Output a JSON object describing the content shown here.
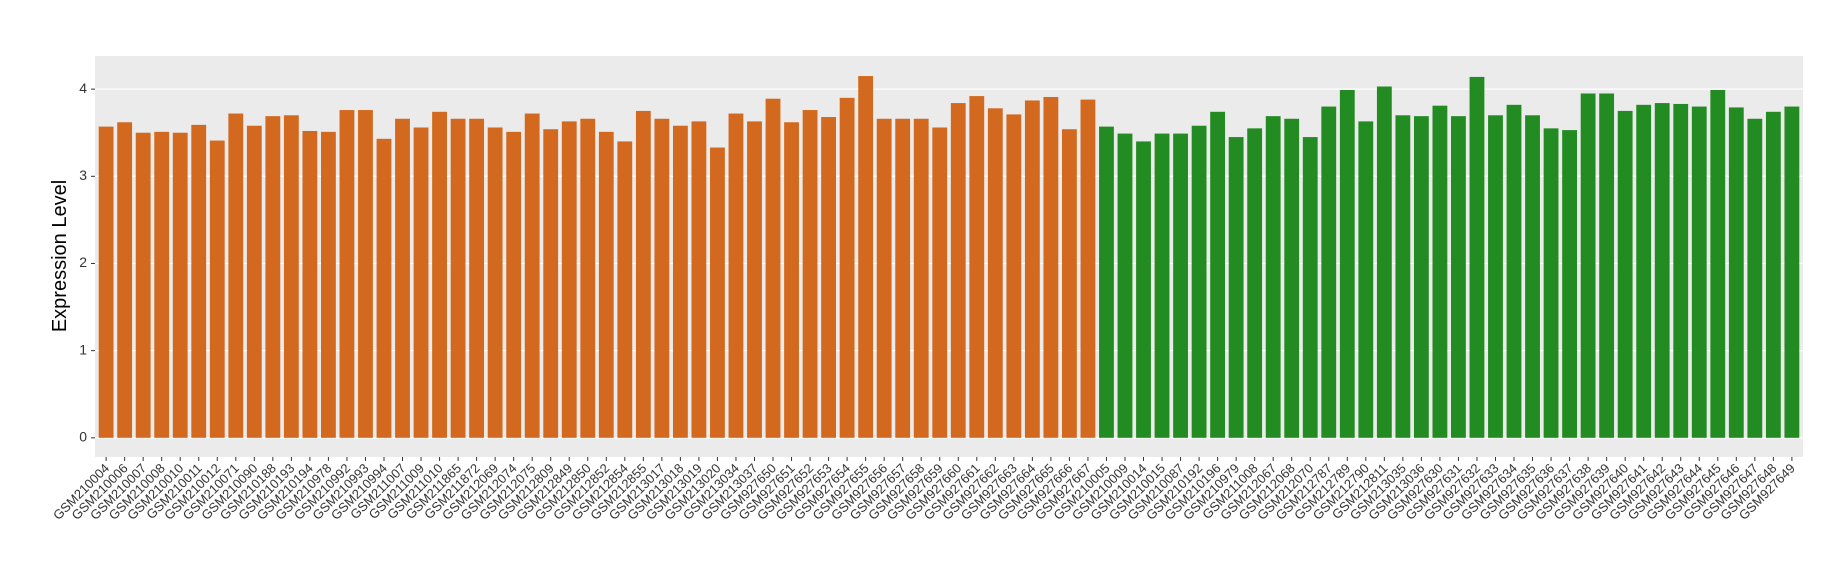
{
  "chart_data": {
    "type": "bar",
    "y_label": "Expression Level",
    "categories": [
      "GSM210004",
      "GSM210006",
      "GSM210007",
      "GSM210008",
      "GSM210010",
      "GSM210011",
      "GSM210012",
      "GSM210071",
      "GSM210090",
      "GSM210188",
      "GSM210193",
      "GSM210194",
      "GSM210978",
      "GSM210992",
      "GSM210993",
      "GSM210994",
      "GSM211007",
      "GSM211009",
      "GSM211010",
      "GSM211865",
      "GSM211872",
      "GSM212069",
      "GSM212074",
      "GSM212075",
      "GSM212809",
      "GSM212849",
      "GSM212850",
      "GSM212852",
      "GSM212854",
      "GSM212855",
      "GSM213017",
      "GSM213018",
      "GSM213019",
      "GSM213020",
      "GSM213034",
      "GSM213037",
      "GSM927650",
      "GSM927651",
      "GSM927652",
      "GSM927653",
      "GSM927654",
      "GSM927655",
      "GSM927656",
      "GSM927657",
      "GSM927658",
      "GSM927659",
      "GSM927660",
      "GSM927661",
      "GSM927662",
      "GSM927663",
      "GSM927664",
      "GSM927665",
      "GSM927666",
      "GSM927667",
      "GSM210005",
      "GSM210009",
      "GSM210014",
      "GSM210015",
      "GSM210087",
      "GSM210192",
      "GSM210196",
      "GSM210979",
      "GSM211008",
      "GSM212067",
      "GSM212068",
      "GSM212070",
      "GSM212787",
      "GSM212789",
      "GSM212790",
      "GSM212811",
      "GSM213035",
      "GSM213036",
      "GSM927630",
      "GSM927631",
      "GSM927632",
      "GSM927633",
      "GSM927634",
      "GSM927635",
      "GSM927636",
      "GSM927637",
      "GSM927638",
      "GSM927639",
      "GSM927640",
      "GSM927641",
      "GSM927642",
      "GSM927643",
      "GSM927644",
      "GSM927645",
      "GSM927646",
      "GSM927647",
      "GSM927648",
      "GSM927649"
    ],
    "values": [
      3.57,
      3.62,
      3.5,
      3.51,
      3.5,
      3.59,
      3.41,
      3.72,
      3.58,
      3.69,
      3.7,
      3.52,
      3.51,
      3.76,
      3.76,
      3.43,
      3.66,
      3.56,
      3.74,
      3.66,
      3.66,
      3.56,
      3.51,
      3.72,
      3.54,
      3.63,
      3.66,
      3.51,
      3.4,
      3.75,
      3.66,
      3.58,
      3.63,
      3.33,
      3.72,
      3.63,
      3.89,
      3.62,
      3.76,
      3.68,
      3.9,
      4.15,
      3.66,
      3.66,
      3.66,
      3.56,
      3.84,
      3.92,
      3.78,
      3.71,
      3.87,
      3.91,
      3.54,
      3.88,
      3.57,
      3.49,
      3.4,
      3.49,
      3.49,
      3.58,
      3.74,
      3.45,
      3.55,
      3.69,
      3.66,
      3.45,
      3.8,
      3.99,
      3.63,
      4.03,
      3.7,
      3.69,
      3.81,
      3.69,
      4.14,
      3.7,
      3.82,
      3.7,
      3.55,
      3.53,
      3.95,
      3.95,
      3.75,
      3.82,
      3.84,
      3.83,
      3.8,
      3.99,
      3.79,
      3.66,
      3.74,
      3.8
    ],
    "colors": [
      "#d2691e",
      "#d2691e",
      "#d2691e",
      "#d2691e",
      "#d2691e",
      "#d2691e",
      "#d2691e",
      "#d2691e",
      "#d2691e",
      "#d2691e",
      "#d2691e",
      "#d2691e",
      "#d2691e",
      "#d2691e",
      "#d2691e",
      "#d2691e",
      "#d2691e",
      "#d2691e",
      "#d2691e",
      "#d2691e",
      "#d2691e",
      "#d2691e",
      "#d2691e",
      "#d2691e",
      "#d2691e",
      "#d2691e",
      "#d2691e",
      "#d2691e",
      "#d2691e",
      "#d2691e",
      "#d2691e",
      "#d2691e",
      "#d2691e",
      "#d2691e",
      "#d2691e",
      "#d2691e",
      "#d2691e",
      "#d2691e",
      "#d2691e",
      "#d2691e",
      "#d2691e",
      "#d2691e",
      "#d2691e",
      "#d2691e",
      "#d2691e",
      "#d2691e",
      "#d2691e",
      "#d2691e",
      "#d2691e",
      "#d2691e",
      "#d2691e",
      "#d2691e",
      "#d2691e",
      "#d2691e",
      "#228b22",
      "#228b22",
      "#228b22",
      "#228b22",
      "#228b22",
      "#228b22",
      "#228b22",
      "#228b22",
      "#228b22",
      "#228b22",
      "#228b22",
      "#228b22",
      "#228b22",
      "#228b22",
      "#228b22",
      "#228b22",
      "#228b22",
      "#228b22",
      "#228b22",
      "#228b22",
      "#228b22",
      "#228b22",
      "#228b22",
      "#228b22",
      "#228b22",
      "#228b22",
      "#228b22",
      "#228b22",
      "#228b22",
      "#228b22",
      "#228b22",
      "#228b22",
      "#228b22",
      "#228b22",
      "#228b22",
      "#228b22",
      "#228b22",
      "#228b22"
    ],
    "ylim": [
      -0.22,
      4.38
    ],
    "yticks": [
      0,
      1,
      2,
      3,
      4
    ],
    "grid": true
  }
}
